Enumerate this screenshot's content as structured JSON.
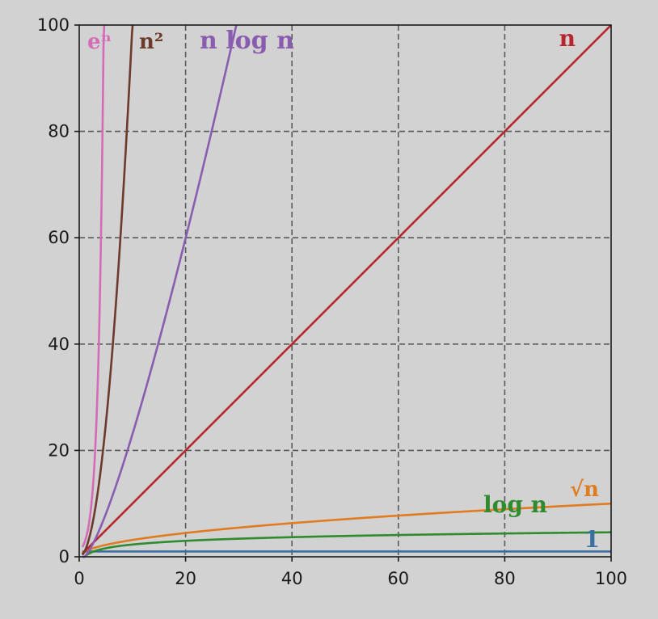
{
  "chart_data": {
    "type": "line",
    "title": "",
    "xlabel": "",
    "ylabel": "",
    "xlim": [
      0,
      100
    ],
    "ylim": [
      0,
      100
    ],
    "x_ticks": [
      "0",
      "20",
      "40",
      "60",
      "80",
      "100"
    ],
    "y_ticks": [
      "0",
      "20",
      "40",
      "60",
      "80",
      "100"
    ],
    "grid": true,
    "background_color": "#d2d2d2",
    "series": [
      {
        "name": "1",
        "formula": "1",
        "color": "#3a6fa0"
      },
      {
        "name": "log n",
        "formula": "log n",
        "color": "#2e8b2e"
      },
      {
        "name": "√n",
        "formula": "sqrt n",
        "color": "#e07b1f"
      },
      {
        "name": "n",
        "formula": "n",
        "color": "#b5262e"
      },
      {
        "name": "n log n",
        "formula": "n log n",
        "color": "#8a5cb0"
      },
      {
        "name": "n²",
        "formula": "n^2",
        "color": "#6b3a2a"
      },
      {
        "name": "eⁿ",
        "formula": "e^n",
        "color": "#d46bb8"
      }
    ]
  }
}
